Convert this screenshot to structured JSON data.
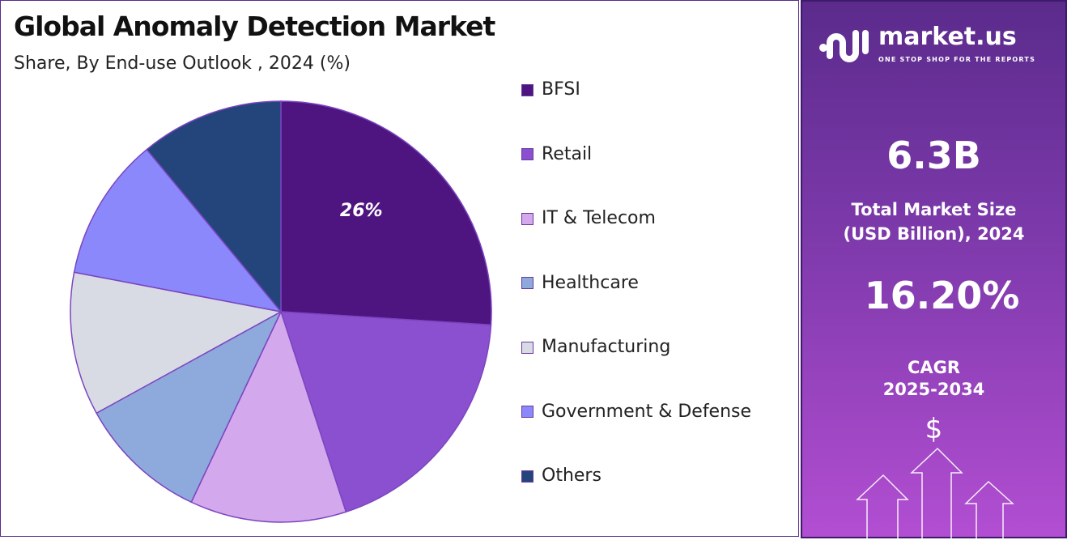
{
  "chart_data": {
    "type": "pie",
    "title": "Global Anomaly Detection Market",
    "subtitle": "Share, By End-use Outlook , 2024 (%)",
    "categories": [
      "BFSI",
      "Retail",
      "IT & Telecom",
      "Healthcare",
      "Manufacturing",
      "Government & Defense",
      "Others"
    ],
    "values": [
      26,
      19,
      12,
      10,
      11,
      11,
      11
    ],
    "colors": [
      "#4e1580",
      "#8a50d0",
      "#d4a8ec",
      "#8ea9dc",
      "#d9dbe4",
      "#8a88fb",
      "#24457b"
    ],
    "data_labels": [
      "26%",
      "",
      "",
      "",
      "",
      "",
      ""
    ],
    "legend_position": "right"
  },
  "sidebar": {
    "logo_text": "market.us",
    "logo_tagline": "ONE STOP SHOP FOR THE REPORTS",
    "market_size": "6.3B",
    "market_size_label_1": "Total Market Size",
    "market_size_label_2": "(USD Billion), 2024",
    "cagr": "16.20%",
    "cagr_label_1": "CAGR",
    "cagr_label_2": "2025-2034",
    "currency_symbol": "$"
  }
}
